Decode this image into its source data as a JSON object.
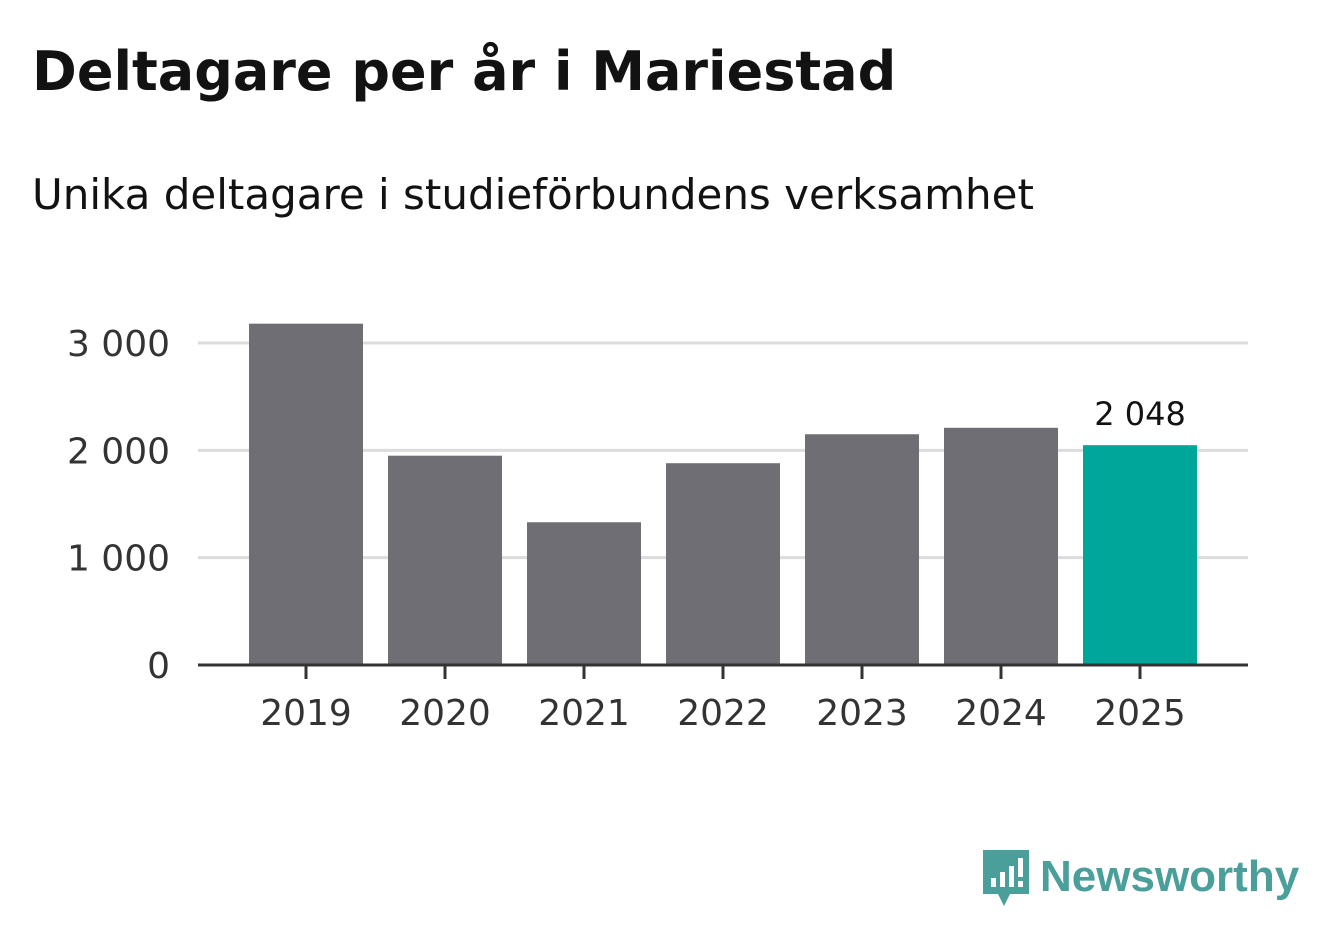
{
  "chart_data": {
    "type": "bar",
    "title": "Deltagare per år i Mariestad",
    "subtitle": "Unika deltagare i studieförbundens verksamhet",
    "categories": [
      "2019",
      "2020",
      "2021",
      "2022",
      "2023",
      "2024",
      "2025"
    ],
    "values": [
      3180,
      1950,
      1330,
      1880,
      2150,
      2210,
      2048
    ],
    "highlight_index": 6,
    "highlight_label": "2 048",
    "yticks": [
      0,
      1000,
      2000,
      3000
    ],
    "ytick_labels": [
      "0",
      "1 000",
      "2 000",
      "3 000"
    ],
    "ylim": [
      0,
      3000
    ],
    "grid": true,
    "bar_color": "#6f6e74",
    "highlight_color": "#00a69a"
  },
  "brand": {
    "name": "Newsworthy",
    "color": "#4a9f9a"
  }
}
